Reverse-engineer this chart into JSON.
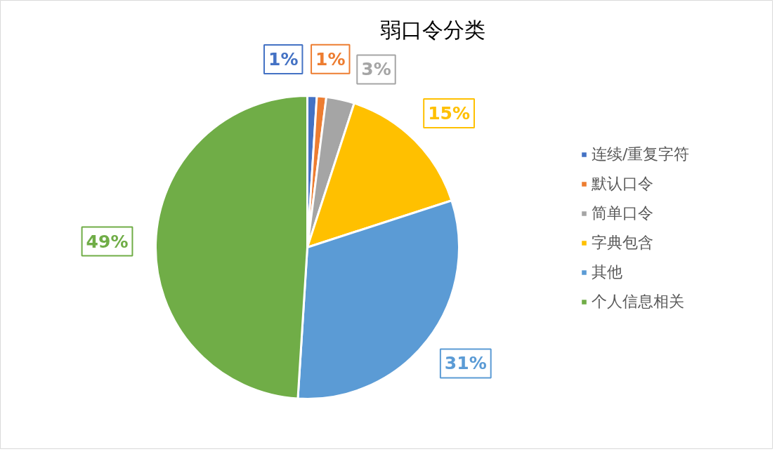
{
  "chart_data": {
    "type": "pie",
    "title": "弱口令分类",
    "categories": [
      "连续/重复字符",
      "默认口令",
      "简单口令",
      "字典包含",
      "其他",
      "个人信息相关"
    ],
    "values": [
      1,
      1,
      3,
      15,
      31,
      49
    ],
    "colors": [
      "#4472c4",
      "#ed7d31",
      "#a5a5a5",
      "#ffc000",
      "#5b9bd5",
      "#70ad47"
    ],
    "value_labels": [
      "1%",
      "1%",
      "3%",
      "15%",
      "31%",
      "49%"
    ],
    "legend": "right"
  }
}
